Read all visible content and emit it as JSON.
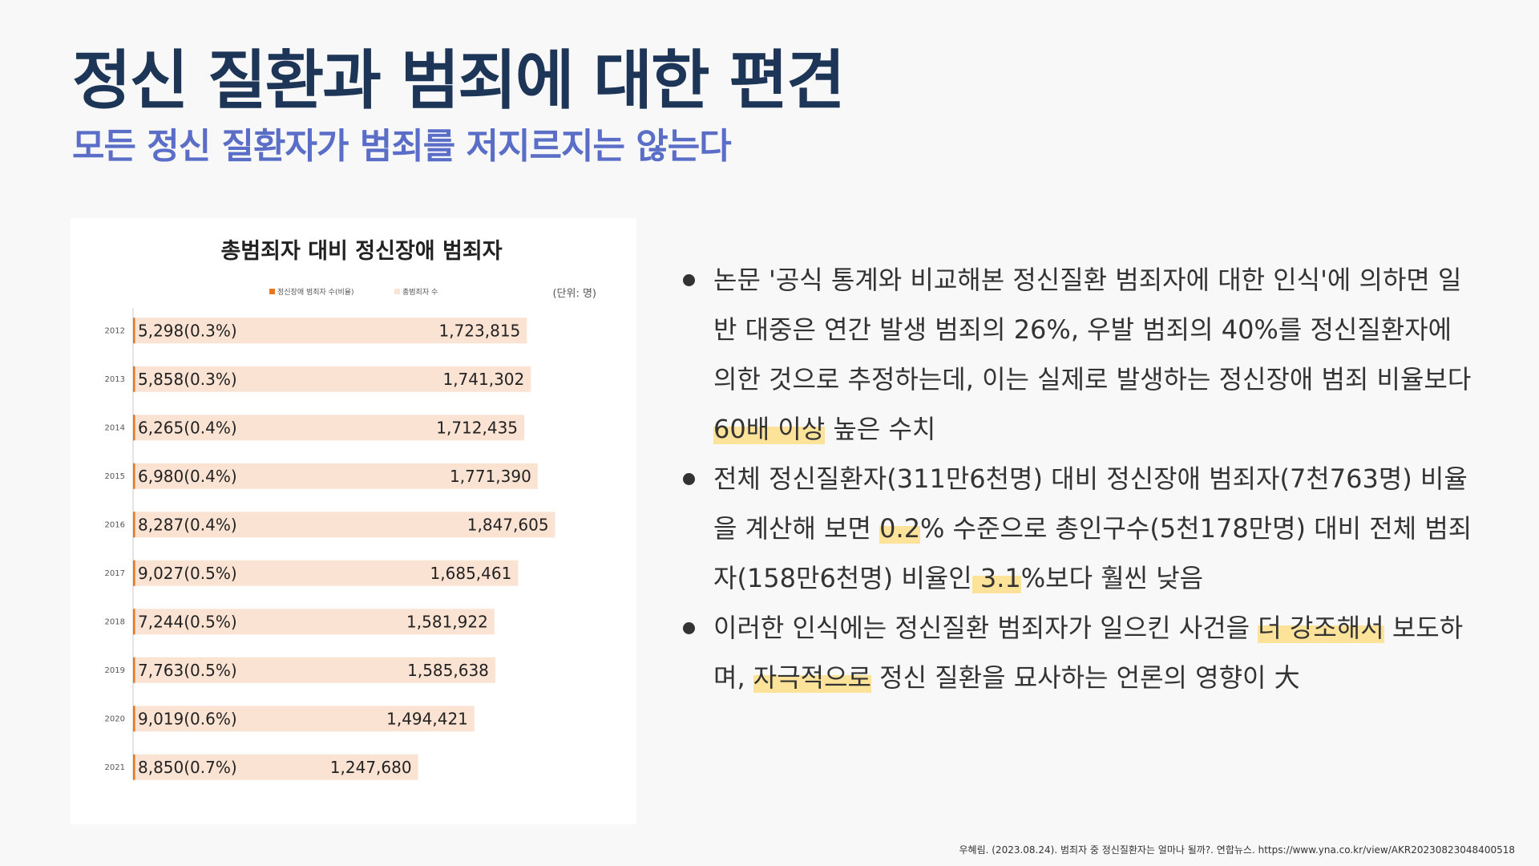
{
  "slide": {
    "title": "정신 질환과 범죄에 대한 편견",
    "subtitle": "모든 정신 질환자가 범죄를 저지르지는 않는다"
  },
  "colors": {
    "title": "#1d3557",
    "subtitle": "#5b6ec7",
    "highlight": "#fde29a",
    "bar_total": "#fbe3d3",
    "bar_mental": "#e8761d",
    "text": "#333333"
  },
  "chart_data": {
    "type": "bar",
    "orientation": "horizontal",
    "title": "총범죄자 대비 정신장애 범죄자",
    "unit_note": "(단위: 명)",
    "legend": [
      "정신장애 범죄자 수(비율)",
      "총범죄자 수"
    ],
    "legend_placement": "top",
    "categories": [
      "2012",
      "2013",
      "2014",
      "2015",
      "2016",
      "2017",
      "2018",
      "2019",
      "2020",
      "2021"
    ],
    "series": [
      {
        "name": "정신장애 범죄자 수(비율)",
        "values": [
          5298,
          5858,
          6265,
          6980,
          8287,
          9027,
          7244,
          7763,
          9019,
          8850
        ],
        "labels": [
          "5,298(0.3%)",
          "5,858(0.3%)",
          "6,265(0.4%)",
          "6,980(0.4%)",
          "8,287(0.4%)",
          "9,027(0.5%)",
          "7,244(0.5%)",
          "7,763(0.5%)",
          "9,019(0.6%)",
          "8,850(0.7%)"
        ]
      },
      {
        "name": "총범죄자 수",
        "values": [
          1723815,
          1741302,
          1712435,
          1771390,
          1847605,
          1685461,
          1581922,
          1585638,
          1494421,
          1247680
        ],
        "labels": [
          "1,723,815",
          "1,741,302",
          "1,712,435",
          "1,771,390",
          "1,847,605",
          "1,685,461",
          "1,581,922",
          "1,585,638",
          "1,494,421",
          "1,247,680"
        ]
      }
    ],
    "grid": false
  },
  "bullets": [
    {
      "parts": [
        {
          "text": "논문 '공식 통계와 비교해본 정신질환 범죄자에 대한 인식'에 의하면 일반 대중은 연간 발생 범죄의 26%, 우발 범죄의 40%를 정신질환자에 의한 것으로 추정하는데, 이는 실제로 발생하는 정신장애 범죄 비율보다",
          "hl": false
        },
        {
          "text": " 60배 이상",
          "hl": true
        },
        {
          "text": " 높은 수치",
          "hl": false
        }
      ]
    },
    {
      "parts": [
        {
          "text": "전체 정신질환자(311만6천명) 대비 정신장애 범죄자(7천763명) 비율을 계산해 보면 ",
          "hl": false
        },
        {
          "text": "0.2",
          "hl": true
        },
        {
          "text": "% 수준으로 총인구수(5천178만명) 대비 전체 범죄자(158만6천명) 비율인",
          "hl": false
        },
        {
          "text": " 3.1",
          "hl": true
        },
        {
          "text": "%보다 훨씬 낮음",
          "hl": false
        }
      ]
    },
    {
      "parts": [
        {
          "text": "이러한 인식에는 정신질환 범죄자가 일으킨 사건을 ",
          "hl": false
        },
        {
          "text": "더 강조해서",
          "hl": true
        },
        {
          "text": " 보도하며, ",
          "hl": false
        },
        {
          "text": "자극적으로",
          "hl": true
        },
        {
          "text": " 정신 질환을 묘사하는 언론의 영향이 大",
          "hl": false
        }
      ]
    }
  ],
  "footnote": "우혜림. (2023.08.24). 범죄자 중 정신질환자는 얼마나 될까?. 연합뉴스. https://www.yna.co.kr/view/AKR20230823048400518"
}
